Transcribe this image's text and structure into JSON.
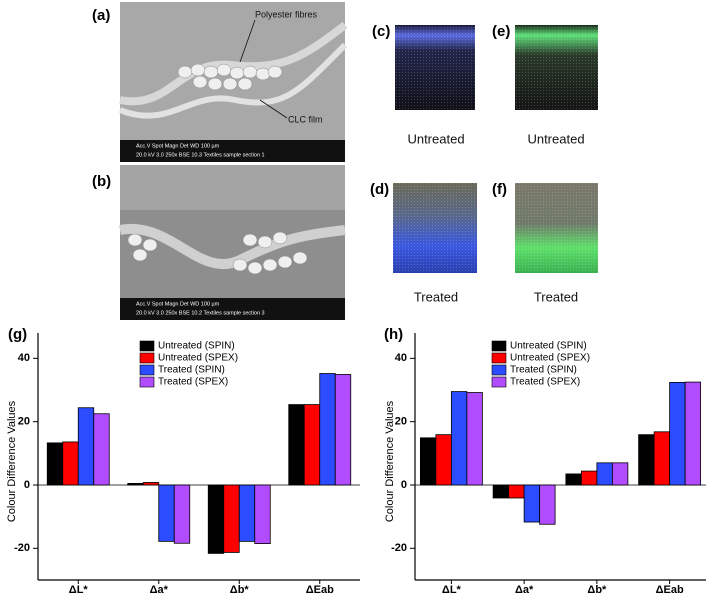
{
  "panels": [
    {
      "label": "(a)",
      "annotations": [
        "Polyester fibres",
        "CLC film"
      ],
      "info": "Acc.V  Spot Magn   Det  WD       100 µm",
      "info2": "20.0 kV 3.0  250x  BSE 10.3 Textiles sample section 1"
    },
    {
      "label": "(b)",
      "info": "Acc.V  Spot Magn   Det  WD       100 µm",
      "info2": "20.0 kV 3.0  250x  BSE 10.2 Textiles sample section 3"
    },
    {
      "label": "(c)",
      "caption": "Untreated"
    },
    {
      "label": "(e)",
      "caption": "Untreated"
    },
    {
      "label": "(d)",
      "caption": "Treated"
    },
    {
      "label": "(f)",
      "caption": "Treated"
    }
  ],
  "chart_data": [
    {
      "type": "bar",
      "title": "(g)",
      "ylabel": "Colour Difference Values",
      "categories": [
        "ΔL*",
        "Δa*",
        "Δb*",
        "ΔEab"
      ],
      "series": [
        {
          "name": "Untreated (SPIN)",
          "color": "#000000",
          "values": [
            13.3,
            0.5,
            -21.6,
            25.4
          ]
        },
        {
          "name": "Untreated (SPEX)",
          "color": "#ff0000",
          "values": [
            13.6,
            0.8,
            -21.3,
            25.4
          ]
        },
        {
          "name": "Treated (SPIN)",
          "color": "#2b4cff",
          "values": [
            24.4,
            -17.8,
            -17.8,
            35.2
          ]
        },
        {
          "name": "Treated (SPEX)",
          "color": "#b24cff",
          "values": [
            22.5,
            -18.4,
            -18.5,
            34.9
          ]
        }
      ],
      "ylim": [
        -30,
        48
      ],
      "yticks": [
        -20,
        0,
        20,
        40
      ]
    },
    {
      "type": "bar",
      "title": "(h)",
      "ylabel": "Colour Difference Values",
      "categories": [
        "ΔL*",
        "Δa*",
        "Δb*",
        "ΔEab"
      ],
      "series": [
        {
          "name": "Untreated (SPIN)",
          "color": "#000000",
          "values": [
            14.9,
            -4.1,
            3.5,
            15.9
          ]
        },
        {
          "name": "Untreated (SPEX)",
          "color": "#ff0000",
          "values": [
            15.9,
            -4.1,
            4.4,
            16.8
          ]
        },
        {
          "name": "Treated (SPIN)",
          "color": "#2b4cff",
          "values": [
            29.5,
            -11.7,
            7.0,
            32.4
          ]
        },
        {
          "name": "Treated (SPEX)",
          "color": "#b24cff",
          "values": [
            29.2,
            -12.4,
            7.0,
            32.5
          ]
        }
      ],
      "ylim": [
        -30,
        48
      ],
      "yticks": [
        -20,
        0,
        20,
        40
      ]
    }
  ]
}
